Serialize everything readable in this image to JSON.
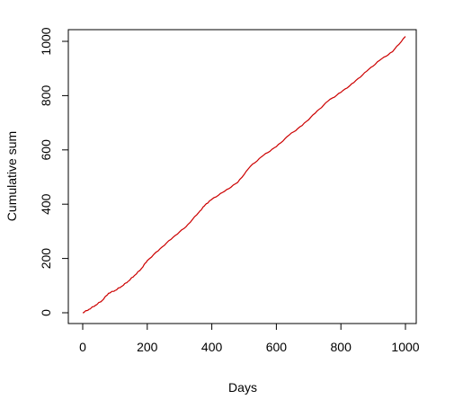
{
  "chart_data": {
    "type": "line",
    "title": "",
    "xlabel": "Days",
    "ylabel": "Cumulative sum",
    "xlim": [
      0,
      1000
    ],
    "ylim": [
      0,
      1020
    ],
    "x_ticks": [
      0,
      200,
      400,
      600,
      800,
      1000
    ],
    "y_ticks": [
      0,
      200,
      400,
      600,
      800,
      1000
    ],
    "grid": false,
    "legend": "none",
    "series": [
      {
        "color": "#cc0000",
        "x": [
          0,
          20,
          40,
          60,
          80,
          100,
          120,
          140,
          160,
          180,
          200,
          240,
          280,
          320,
          360,
          380,
          400,
          440,
          480,
          520,
          560,
          600,
          640,
          680,
          720,
          760,
          800,
          840,
          880,
          920,
          960,
          1000
        ],
        "y": [
          0,
          13,
          28,
          45,
          72,
          82,
          97,
          115,
          137,
          160,
          192,
          236,
          278,
          317,
          370,
          398,
          418,
          448,
          480,
          540,
          580,
          612,
          655,
          690,
          735,
          780,
          812,
          848,
          890,
          930,
          962,
          1018
        ]
      }
    ]
  }
}
